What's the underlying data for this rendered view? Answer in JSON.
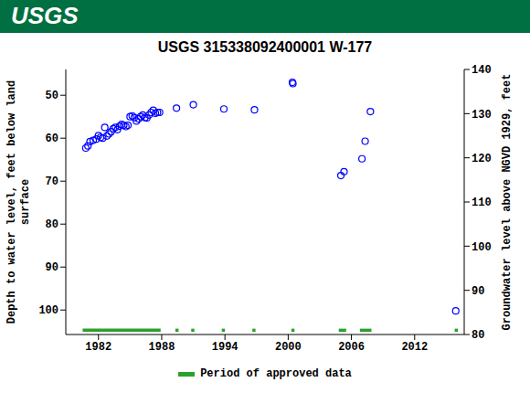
{
  "chart_data": {
    "type": "scatter",
    "header": "USGS",
    "title": "USGS 315338092400001 W-177",
    "y_label": "Depth to water level, feet below land surface",
    "y2_label": "Groundwater level above NGVD 1929, feet",
    "legend_label": "Period of approved data",
    "x": [
      1980.8,
      1981.0,
      1981.2,
      1981.5,
      1981.8,
      1982.0,
      1982.2,
      1982.4,
      1982.6,
      1982.8,
      1983.0,
      1983.2,
      1983.4,
      1983.6,
      1983.8,
      1984.0,
      1984.2,
      1984.4,
      1984.6,
      1984.8,
      1985.0,
      1985.2,
      1985.4,
      1985.6,
      1985.8,
      1986.0,
      1986.2,
      1986.4,
      1986.6,
      1986.8,
      1987.0,
      1987.2,
      1987.4,
      1987.6,
      1987.8,
      1989.4,
      1991.0,
      1993.9,
      1996.8,
      2000.4,
      2000.45,
      2005.0,
      2005.3,
      2007.0,
      2007.3,
      2007.8,
      2015.9
    ],
    "values": [
      62.3,
      61.8,
      60.8,
      60.5,
      60.2,
      59.4,
      59.8,
      60.0,
      57.5,
      59.5,
      59.0,
      58.5,
      57.8,
      57.5,
      58.0,
      57.2,
      56.8,
      57.0,
      57.3,
      57.0,
      55.0,
      54.8,
      55.2,
      56.0,
      55.5,
      55.0,
      54.6,
      55.2,
      55.3,
      54.6,
      54.0,
      53.5,
      54.2,
      54.0,
      54.0,
      53.0,
      52.2,
      53.2,
      53.4,
      47.0,
      47.3,
      68.7,
      67.8,
      64.8,
      60.7,
      53.8,
      100.2
    ],
    "color": "#0000ff",
    "marker": "circle",
    "approved_periods": [
      [
        1980.5,
        1987.9
      ],
      [
        1989.3,
        1989.6
      ],
      [
        1990.8,
        1991.1
      ],
      [
        1993.7,
        1994.0
      ],
      [
        1996.6,
        1996.9
      ],
      [
        2000.3,
        2000.6
      ],
      [
        2004.8,
        2005.5
      ],
      [
        2006.8,
        2007.9
      ],
      [
        2015.8,
        2016.1
      ]
    ],
    "approved_color": "#2ca02c",
    "xlim": [
      1978.9,
      2016.7
    ],
    "xticks": [
      1982,
      1988,
      1994,
      2000,
      2006,
      2012
    ],
    "ylim": [
      44,
      105.7
    ],
    "yticks": [
      50,
      60,
      70,
      80,
      90,
      100
    ],
    "y2lim": [
      80,
      140
    ],
    "y2ticks": [
      80,
      90,
      100,
      110,
      120,
      130,
      140
    ],
    "grid": false
  }
}
